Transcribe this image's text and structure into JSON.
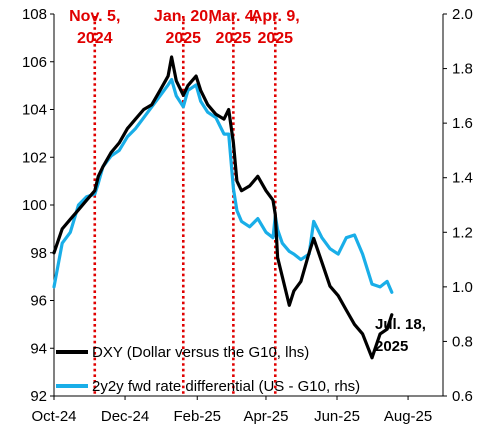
{
  "chart_data": {
    "type": "line",
    "title": "",
    "grid": false,
    "legend_position": "bottom-left",
    "x_axis": {
      "ticks": [
        "Oct-24",
        "Dec-24",
        "Feb-25",
        "Apr-25",
        "Jun-25",
        "Aug-25"
      ],
      "range": [
        "2024-10-01",
        "2025-08-31"
      ]
    },
    "y_left": {
      "ylim": [
        92,
        108
      ],
      "ticks": [
        "92",
        "94",
        "96",
        "98",
        "100",
        "102",
        "104",
        "106",
        "108"
      ]
    },
    "y_right": {
      "ylim": [
        0.6,
        2.0
      ],
      "ticks": [
        "0.6",
        "0.8",
        "1.0",
        "1.2",
        "1.4",
        "1.6",
        "1.8",
        "2.0"
      ]
    },
    "events": [
      {
        "date": "2024-11-05",
        "label": [
          "Nov. 5,",
          "2024"
        ]
      },
      {
        "date": "2025-01-20",
        "label": [
          "Jan. 20,",
          "2025"
        ]
      },
      {
        "date": "2025-03-04",
        "label": [
          "Mar. 4,",
          "2025"
        ]
      },
      {
        "date": "2025-04-09",
        "label": [
          "Apr. 9,",
          "2025"
        ]
      }
    ],
    "annotation": [
      "Jul. 18,",
      "2025"
    ],
    "series": [
      {
        "name": "DXY (Dollar versus the G10, lhs)",
        "axis": "left",
        "color": "#000000",
        "points": [
          [
            "2024-10-01",
            98.0
          ],
          [
            "2024-10-08",
            99.0
          ],
          [
            "2024-10-15",
            99.4
          ],
          [
            "2024-10-22",
            99.8
          ],
          [
            "2024-10-29",
            100.2
          ],
          [
            "2024-11-05",
            100.6
          ],
          [
            "2024-11-08",
            101.2
          ],
          [
            "2024-11-12",
            101.6
          ],
          [
            "2024-11-19",
            102.2
          ],
          [
            "2024-11-26",
            102.6
          ],
          [
            "2024-12-03",
            103.2
          ],
          [
            "2024-12-10",
            103.6
          ],
          [
            "2024-12-17",
            104.0
          ],
          [
            "2024-12-24",
            104.2
          ],
          [
            "2024-12-31",
            104.8
          ],
          [
            "2025-01-07",
            105.4
          ],
          [
            "2025-01-10",
            106.2
          ],
          [
            "2025-01-14",
            105.2
          ],
          [
            "2025-01-20",
            104.6
          ],
          [
            "2025-01-24",
            105.0
          ],
          [
            "2025-01-31",
            105.4
          ],
          [
            "2025-02-04",
            104.8
          ],
          [
            "2025-02-10",
            104.2
          ],
          [
            "2025-02-17",
            103.8
          ],
          [
            "2025-02-24",
            103.6
          ],
          [
            "2025-02-28",
            104.0
          ],
          [
            "2025-03-04",
            102.6
          ],
          [
            "2025-03-07",
            101.0
          ],
          [
            "2025-03-11",
            100.6
          ],
          [
            "2025-03-18",
            100.8
          ],
          [
            "2025-03-25",
            101.2
          ],
          [
            "2025-04-01",
            100.6
          ],
          [
            "2025-04-07",
            100.2
          ],
          [
            "2025-04-09",
            99.6
          ],
          [
            "2025-04-11",
            97.8
          ],
          [
            "2025-04-15",
            97.0
          ],
          [
            "2025-04-21",
            95.8
          ],
          [
            "2025-04-25",
            96.4
          ],
          [
            "2025-05-01",
            96.8
          ],
          [
            "2025-05-08",
            98.0
          ],
          [
            "2025-05-12",
            98.6
          ],
          [
            "2025-05-19",
            97.6
          ],
          [
            "2025-05-26",
            96.6
          ],
          [
            "2025-06-02",
            96.2
          ],
          [
            "2025-06-09",
            95.6
          ],
          [
            "2025-06-16",
            95.0
          ],
          [
            "2025-06-23",
            94.6
          ],
          [
            "2025-07-01",
            93.6
          ],
          [
            "2025-07-08",
            94.6
          ],
          [
            "2025-07-14",
            94.8
          ],
          [
            "2025-07-18",
            95.4
          ]
        ]
      },
      {
        "name": "2y2y fwd rate differential (US - G10, rhs)",
        "axis": "right",
        "color": "#19aee8",
        "points": [
          [
            "2024-10-01",
            1.0
          ],
          [
            "2024-10-08",
            1.16
          ],
          [
            "2024-10-15",
            1.2
          ],
          [
            "2024-10-22",
            1.3
          ],
          [
            "2024-10-29",
            1.33
          ],
          [
            "2024-11-05",
            1.34
          ],
          [
            "2024-11-08",
            1.38
          ],
          [
            "2024-11-12",
            1.44
          ],
          [
            "2024-11-19",
            1.48
          ],
          [
            "2024-11-26",
            1.5
          ],
          [
            "2024-12-03",
            1.55
          ],
          [
            "2024-12-10",
            1.58
          ],
          [
            "2024-12-17",
            1.62
          ],
          [
            "2024-12-24",
            1.66
          ],
          [
            "2024-12-31",
            1.7
          ],
          [
            "2025-01-07",
            1.74
          ],
          [
            "2025-01-10",
            1.76
          ],
          [
            "2025-01-14",
            1.7
          ],
          [
            "2025-01-20",
            1.66
          ],
          [
            "2025-01-24",
            1.72
          ],
          [
            "2025-01-31",
            1.74
          ],
          [
            "2025-02-04",
            1.68
          ],
          [
            "2025-02-10",
            1.64
          ],
          [
            "2025-02-17",
            1.62
          ],
          [
            "2025-02-24",
            1.56
          ],
          [
            "2025-02-28",
            1.56
          ],
          [
            "2025-03-04",
            1.36
          ],
          [
            "2025-03-07",
            1.28
          ],
          [
            "2025-03-11",
            1.24
          ],
          [
            "2025-03-18",
            1.22
          ],
          [
            "2025-03-25",
            1.25
          ],
          [
            "2025-04-01",
            1.2
          ],
          [
            "2025-04-07",
            1.18
          ],
          [
            "2025-04-09",
            1.26
          ],
          [
            "2025-04-11",
            1.21
          ],
          [
            "2025-04-15",
            1.16
          ],
          [
            "2025-04-21",
            1.13
          ],
          [
            "2025-04-25",
            1.12
          ],
          [
            "2025-05-01",
            1.1
          ],
          [
            "2025-05-08",
            1.12
          ],
          [
            "2025-05-12",
            1.24
          ],
          [
            "2025-05-19",
            1.18
          ],
          [
            "2025-05-26",
            1.14
          ],
          [
            "2025-06-02",
            1.12
          ],
          [
            "2025-06-09",
            1.18
          ],
          [
            "2025-06-16",
            1.19
          ],
          [
            "2025-06-23",
            1.12
          ],
          [
            "2025-07-01",
            1.01
          ],
          [
            "2025-07-08",
            1.0
          ],
          [
            "2025-07-14",
            1.02
          ],
          [
            "2025-07-18",
            0.98
          ]
        ]
      }
    ]
  }
}
